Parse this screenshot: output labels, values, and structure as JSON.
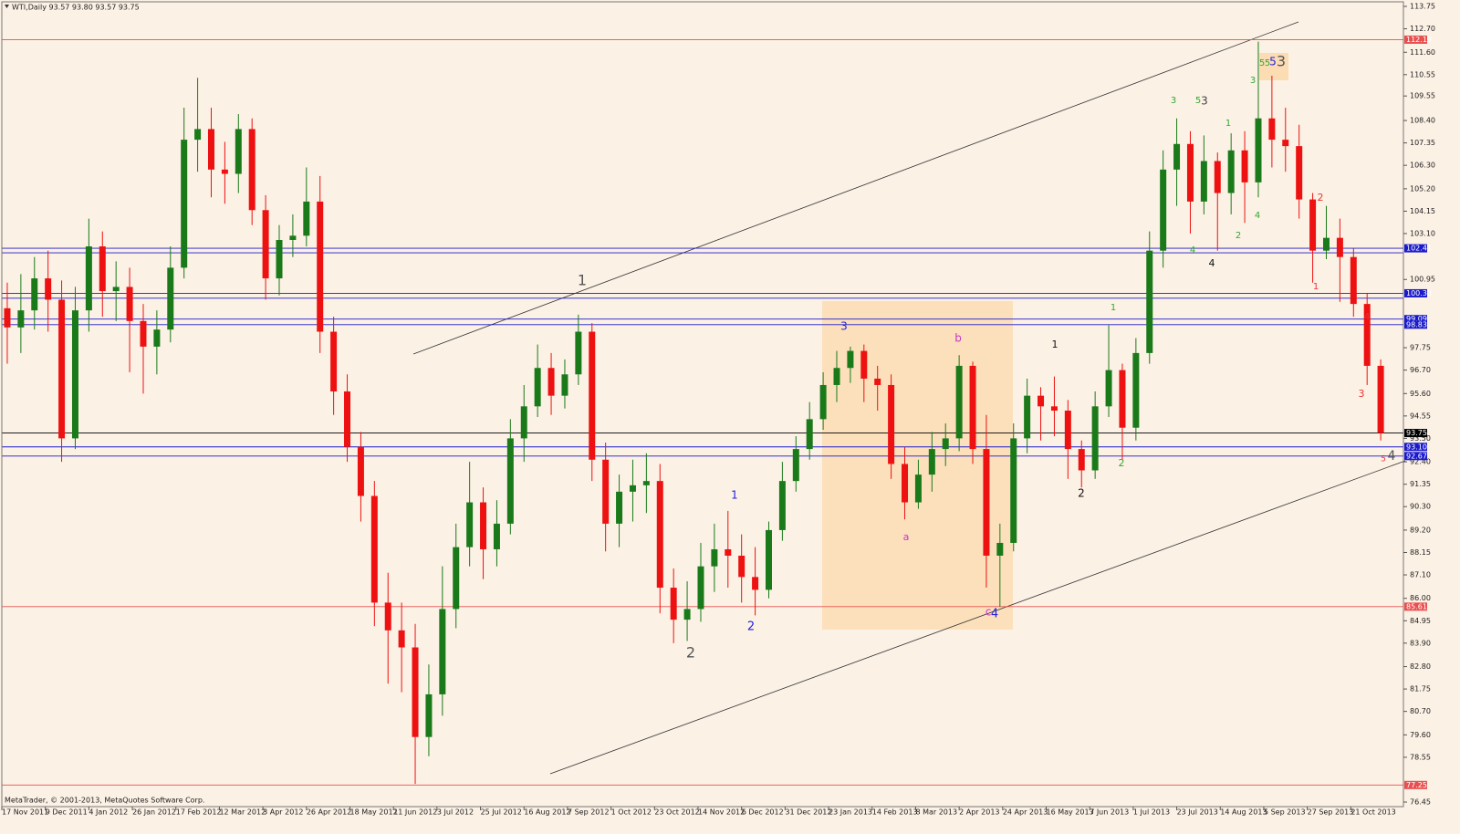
{
  "chart_data": {
    "type": "candlestick",
    "title": "WTI,Daily  93.57 93.80 93.57 93.75",
    "credit": "MetaTrader, © 2001-2013, MetaQuotes Software Corp.",
    "up_color": "#1a7a1a",
    "down_color": "#ee1111",
    "x": [
      2,
      7,
      12,
      17,
      22,
      27,
      32,
      37,
      42,
      47,
      52,
      57,
      62,
      67,
      72,
      77,
      82,
      87,
      92,
      97,
      102,
      107,
      112,
      117,
      122,
      127,
      132,
      137,
      142,
      147,
      152,
      157,
      162,
      167,
      172,
      177,
      182,
      187,
      192,
      197,
      202,
      207,
      212,
      217,
      222,
      227,
      232,
      237,
      242,
      247,
      252,
      257,
      262,
      267,
      272,
      277,
      282,
      287,
      292,
      297,
      302,
      307,
      312,
      317,
      322,
      327,
      332,
      337,
      342,
      347,
      352,
      357,
      362,
      367,
      372,
      377,
      382,
      387,
      392,
      397,
      402,
      407,
      412,
      417,
      422,
      427,
      432,
      437,
      442,
      447,
      452,
      457,
      462,
      467,
      472,
      477,
      482,
      487,
      492,
      497,
      502,
      507
    ],
    "open": [
      99.6,
      98.7,
      99.5,
      101.0,
      100.0,
      93.5,
      99.5,
      102.5,
      100.4,
      100.6,
      99.0,
      97.8,
      98.6,
      101.5,
      107.5,
      108.0,
      106.1,
      105.9,
      108.0,
      104.2,
      101.0,
      102.8,
      103.0,
      104.6,
      98.5,
      95.7,
      93.1,
      90.8,
      85.8,
      84.5,
      83.7,
      79.5,
      81.5,
      85.5,
      88.4,
      90.5,
      88.3,
      89.5,
      93.5,
      95.0,
      96.8,
      95.5,
      96.5,
      98.5,
      92.5,
      89.5,
      91.0,
      91.3,
      91.5,
      86.5,
      85.0,
      85.5,
      87.5,
      88.3,
      88.0,
      87.0,
      86.4,
      89.2,
      91.5,
      93.0,
      94.4,
      96.0,
      96.8,
      97.6,
      96.3,
      96.0,
      92.3,
      90.5,
      91.8,
      93.0,
      93.5,
      96.9,
      93.0,
      88.0,
      88.6,
      93.5,
      95.5,
      95.0,
      94.8,
      93.0,
      92.0,
      95.0,
      96.7,
      94.0,
      97.5,
      102.3,
      106.1,
      107.3,
      104.6,
      106.5,
      105.0,
      107.0,
      105.5,
      108.5,
      107.5,
      107.2,
      104.7,
      102.3,
      102.9,
      102.0,
      99.8,
      96.9
    ],
    "high": [
      100.8,
      101.2,
      102.0,
      102.3,
      100.9,
      100.6,
      103.8,
      103.2,
      101.8,
      101.5,
      99.8,
      99.5,
      102.5,
      109.0,
      110.4,
      109.0,
      107.4,
      108.7,
      108.5,
      104.9,
      103.5,
      104.0,
      106.2,
      105.8,
      99.2,
      96.5,
      93.8,
      91.5,
      87.2,
      85.8,
      84.8,
      82.9,
      87.5,
      89.5,
      92.4,
      91.2,
      90.6,
      94.4,
      96.0,
      97.9,
      97.5,
      97.2,
      99.3,
      98.9,
      93.3,
      91.8,
      92.5,
      92.8,
      92.3,
      87.4,
      86.8,
      88.6,
      89.5,
      90.1,
      89.0,
      88.4,
      89.6,
      92.4,
      93.6,
      95.2,
      96.6,
      97.6,
      97.8,
      97.9,
      96.9,
      96.5,
      93.1,
      92.5,
      93.8,
      94.2,
      97.4,
      97.1,
      94.6,
      89.5,
      94.2,
      96.3,
      95.9,
      96.4,
      95.3,
      93.4,
      95.7,
      98.8,
      97.0,
      98.2,
      103.2,
      107.0,
      108.5,
      107.9,
      107.7,
      106.9,
      107.8,
      107.9,
      112.1,
      110.5,
      109.0,
      108.2,
      105.0,
      104.4,
      103.8,
      102.4,
      100.3,
      97.2
    ],
    "low": [
      97.0,
      97.5,
      98.6,
      98.5,
      92.4,
      93.0,
      98.5,
      99.2,
      99.0,
      96.6,
      95.6,
      96.5,
      98.0,
      101.0,
      106.0,
      104.8,
      104.5,
      105.0,
      103.5,
      100.0,
      100.2,
      102.0,
      102.5,
      97.5,
      94.6,
      92.4,
      89.6,
      84.7,
      82.0,
      81.6,
      77.3,
      78.6,
      80.5,
      84.6,
      87.5,
      86.9,
      87.5,
      89.0,
      92.4,
      94.5,
      94.6,
      94.9,
      96.0,
      91.5,
      88.2,
      88.4,
      89.6,
      90.0,
      85.3,
      83.9,
      84.0,
      84.9,
      86.3,
      86.5,
      85.8,
      85.2,
      86.0,
      88.7,
      91.0,
      92.5,
      93.9,
      95.2,
      96.1,
      95.2,
      94.8,
      91.6,
      89.7,
      90.2,
      91.0,
      92.2,
      92.9,
      92.3,
      86.5,
      85.6,
      88.2,
      92.8,
      93.4,
      93.6,
      91.6,
      91.2,
      91.6,
      94.5,
      92.5,
      93.4,
      97.0,
      101.5,
      104.4,
      103.1,
      104.0,
      102.3,
      104.0,
      103.6,
      104.8,
      106.2,
      106.0,
      103.8,
      100.8,
      101.9,
      99.9,
      99.2,
      96.0,
      93.4
    ],
    "close": [
      98.7,
      99.5,
      101.0,
      100.0,
      93.5,
      99.5,
      102.5,
      100.4,
      100.6,
      99.0,
      97.8,
      98.6,
      101.5,
      107.5,
      108.0,
      106.1,
      105.9,
      108.0,
      104.2,
      101.0,
      102.8,
      103.0,
      104.6,
      98.5,
      95.7,
      93.1,
      90.8,
      85.8,
      84.5,
      83.7,
      79.5,
      81.5,
      85.5,
      88.4,
      90.5,
      88.3,
      89.5,
      93.5,
      95.0,
      96.8,
      95.5,
      96.5,
      98.5,
      92.5,
      89.5,
      91.0,
      91.3,
      91.5,
      86.5,
      85.0,
      85.5,
      87.5,
      88.3,
      88.0,
      87.0,
      86.4,
      89.2,
      91.5,
      93.0,
      94.4,
      96.0,
      96.8,
      97.6,
      96.3,
      96.0,
      92.3,
      90.5,
      91.8,
      93.0,
      93.5,
      96.9,
      93.0,
      88.0,
      88.6,
      93.5,
      95.5,
      95.0,
      94.8,
      93.0,
      92.0,
      95.0,
      96.7,
      94.0,
      97.5,
      102.3,
      106.1,
      107.3,
      104.6,
      106.5,
      105.0,
      107.0,
      105.5,
      108.5,
      107.5,
      107.2,
      104.7,
      102.3,
      102.9,
      102.0,
      99.8,
      96.9,
      93.75
    ],
    "xlim": [
      0,
      512
    ],
    "xticks": [
      {
        "value": 0,
        "label": "17 Nov 2011"
      },
      {
        "value": 16,
        "label": "9 Dec 2011"
      },
      {
        "value": 32,
        "label": "4 Jan 2012"
      },
      {
        "value": 48,
        "label": "26 Jan 2012"
      },
      {
        "value": 64,
        "label": "17 Feb 2012"
      },
      {
        "value": 80,
        "label": "12 Mar 2012"
      },
      {
        "value": 96,
        "label": "3 Apr 2012"
      },
      {
        "value": 112,
        "label": "26 Apr 2012"
      },
      {
        "value": 128,
        "label": "18 May 2012"
      },
      {
        "value": 144,
        "label": "11 Jun 2012"
      },
      {
        "value": 160,
        "label": "3 Jul 2012"
      },
      {
        "value": 176,
        "label": "25 Jul 2012"
      },
      {
        "value": 192,
        "label": "16 Aug 2012"
      },
      {
        "value": 208,
        "label": "7 Sep 2012"
      },
      {
        "value": 224,
        "label": "1 Oct 2012"
      },
      {
        "value": 240,
        "label": "23 Oct 2012"
      },
      {
        "value": 256,
        "label": "14 Nov 2012"
      },
      {
        "value": 272,
        "label": "6 Dec 2012"
      },
      {
        "value": 288,
        "label": "31 Dec 2012"
      },
      {
        "value": 304,
        "label": "23 Jan 2013"
      },
      {
        "value": 320,
        "label": "14 Feb 2013"
      },
      {
        "value": 336,
        "label": "8 Mar 2013"
      },
      {
        "value": 352,
        "label": "2 Apr 2013"
      },
      {
        "value": 368,
        "label": "24 Apr 2013"
      },
      {
        "value": 384,
        "label": "16 May 2013"
      },
      {
        "value": 400,
        "label": "7 Jun 2013"
      },
      {
        "value": 416,
        "label": "1 Jul 2013"
      },
      {
        "value": 432,
        "label": "23 Jul 2013"
      },
      {
        "value": 448,
        "label": "14 Aug 2013"
      },
      {
        "value": 464,
        "label": "5 Sep 2013"
      },
      {
        "value": 480,
        "label": "27 Sep 2013"
      },
      {
        "value": 496,
        "label": "21 Oct 2013"
      }
    ],
    "ylim": [
      76.45,
      113.75
    ],
    "yticks": [
      113.75,
      {
        "value": 112.7,
        "label": "112.70"
      },
      {
        "value": 111.6,
        "label": "111.60"
      },
      110.55,
      109.55,
      {
        "value": 108.4,
        "label": "108.40"
      },
      107.35,
      {
        "value": 106.3,
        "label": "106.30"
      },
      {
        "value": 105.2,
        "label": "105.20"
      },
      104.15,
      {
        "value": 103.1,
        "label": "103.10"
      },
      100.95,
      97.75,
      {
        "value": 96.7,
        "label": "96.70"
      },
      {
        "value": 95.6,
        "label": "95.60"
      },
      94.55,
      {
        "value": 93.5,
        "label": "93.50"
      },
      {
        "value": 92.4,
        "label": "92.40"
      },
      91.35,
      {
        "value": 90.3,
        "label": "90.30"
      },
      {
        "value": 89.2,
        "label": "89.20"
      },
      88.15,
      {
        "value": 87.1,
        "label": "87.10"
      },
      {
        "value": 86,
        "label": "86.00"
      },
      84.95,
      {
        "value": 83.9,
        "label": "83.90"
      },
      {
        "value": 82.8,
        "label": "82.80"
      },
      81.75,
      {
        "value": 80.7,
        "label": "80.70"
      },
      {
        "value": 79.6,
        "label": "79.60"
      },
      78.55,
      76.45
    ],
    "levels": [
      {
        "value": 112.19,
        "label": "112.19",
        "color": "#e85050"
      },
      {
        "value": 102.41,
        "label": "102.41",
        "color": "#1a1acc"
      },
      {
        "value": 102.2,
        "color": "#1a1acc"
      },
      {
        "value": 100.3,
        "label": "100.30",
        "color": "#1a1acc"
      },
      {
        "value": 100.07,
        "color": "#1a1acc"
      },
      {
        "value": 99.09,
        "label": "99.09",
        "color": "#1a1acc"
      },
      {
        "value": 98.83,
        "label": "98.83",
        "color": "#1a1acc"
      },
      {
        "value": 93.75,
        "label": "93.75",
        "color": "#000000"
      },
      {
        "value": 93.1,
        "label": "93.10",
        "color": "#1a1acc"
      },
      {
        "value": 92.67,
        "label": "92.67",
        "color": "#1a1acc"
      },
      {
        "value": 85.61,
        "label": "85.61",
        "color": "#e85050"
      },
      {
        "value": 77.25,
        "label": "77.25",
        "color": "#e85050"
      }
    ],
    "annotations": [
      {
        "text": "1",
        "color": "#555555"
      },
      {
        "text": "2",
        "color": "#555555"
      },
      {
        "text": "1",
        "color": "#2222dd"
      },
      {
        "text": "2",
        "color": "#2222dd"
      },
      {
        "text": "3",
        "color": "#2222dd"
      },
      {
        "text": "b",
        "color": "#cc33cc"
      },
      {
        "text": "a",
        "color": "#cc33cc"
      },
      {
        "text": "c",
        "color": "#cc33cc"
      },
      {
        "text": "4",
        "color": "#2222dd"
      },
      {
        "text": "1",
        "color": "#111111"
      },
      {
        "text": "2",
        "color": "#111111"
      },
      {
        "text": "1",
        "color": "#33aa33"
      },
      {
        "text": "2",
        "color": "#33aa33"
      },
      {
        "text": "3",
        "color": "#33aa33"
      },
      {
        "text": "5",
        "color": "#33aa33"
      },
      {
        "text": "3",
        "color": "#444444"
      },
      {
        "text": "4",
        "color": "#33aa33"
      },
      {
        "text": "4",
        "color": "#111111"
      },
      {
        "text": "1",
        "color": "#33aa33"
      },
      {
        "text": "2",
        "color": "#33aa33"
      },
      {
        "text": "3",
        "color": "#33aa33"
      },
      {
        "text": "4",
        "color": "#33aa33"
      },
      {
        "text": "5",
        "color": "#33aa33"
      },
      {
        "text": "5",
        "color": "#33aa33"
      },
      {
        "text": "5",
        "color": "#2222dd"
      },
      {
        "text": "3",
        "color": "#555555"
      },
      {
        "text": "2",
        "color": "#ee3333"
      },
      {
        "text": "1",
        "color": "#ee3333"
      },
      {
        "text": "4",
        "color": "#ee3333"
      },
      {
        "text": "3",
        "color": "#ee3333"
      },
      {
        "text": "5",
        "color": "#ee3333"
      },
      {
        "text": "4",
        "color": "#555555"
      }
    ]
  }
}
